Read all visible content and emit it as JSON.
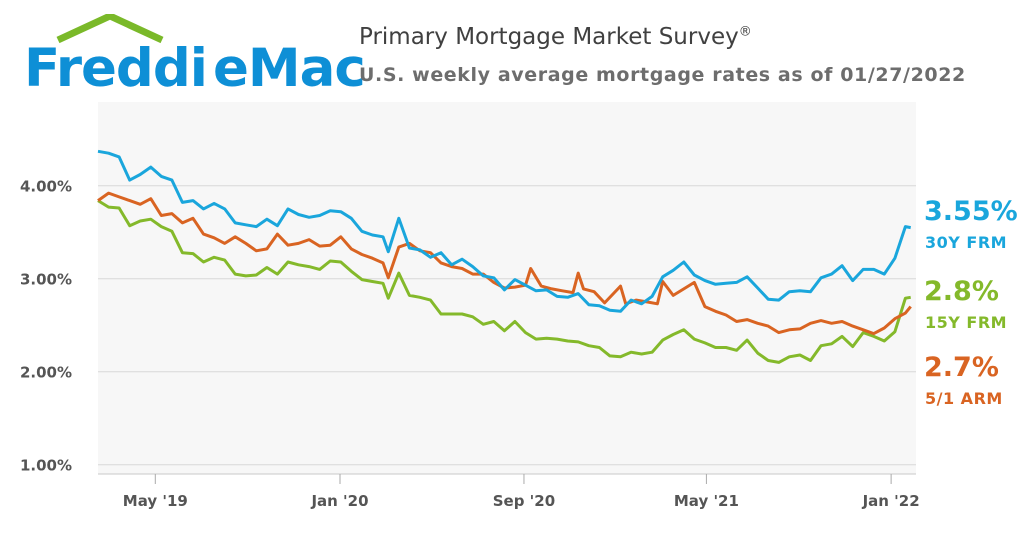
{
  "header": {
    "logo_text": "FreddieMac",
    "title": "Primary Mortgage Market Survey",
    "title_mark": "®",
    "subtitle": "U.S. weekly average mortgage rates as of 01/27/2022"
  },
  "colors": {
    "logo_blue": "#0e8fd6",
    "logo_green": "#7ab929",
    "frm30": "#1aa6dc",
    "frm15": "#84b92b",
    "arm51": "#d96422",
    "plot_bg": "#f7f7f7",
    "grid": "#d8d8d8"
  },
  "rate_labels": [
    {
      "key": "frm30",
      "value": "3.55%",
      "name": "30Y FRM"
    },
    {
      "key": "frm15",
      "value": "2.8%",
      "name": "15Y FRM"
    },
    {
      "key": "arm51",
      "value": "2.7%",
      "name": "5/1 ARM"
    }
  ],
  "chart_data": {
    "type": "line",
    "x_axis_type": "date",
    "xlim": [
      "2019-02-14",
      "2022-02-03"
    ],
    "ylim": [
      0.9,
      4.9
    ],
    "grid": true,
    "y_ticks": [
      {
        "value": 1.0,
        "label": "1.00%"
      },
      {
        "value": 2.0,
        "label": "2.00%"
      },
      {
        "value": 3.0,
        "label": "3.00%"
      },
      {
        "value": 4.0,
        "label": "4.00%"
      }
    ],
    "x_ticks": [
      {
        "value": "2019-05-01",
        "label": "May '19"
      },
      {
        "value": "2020-01-01",
        "label": "Jan '20"
      },
      {
        "value": "2020-09-01",
        "label": "Sep '20"
      },
      {
        "value": "2021-05-01",
        "label": "May '21"
      },
      {
        "value": "2022-01-01",
        "label": "Jan '22"
      }
    ],
    "series": [
      {
        "key": "frm30",
        "name": "30Y FRM",
        "points": [
          [
            "2019-02-14",
            4.37
          ],
          [
            "2019-02-28",
            4.35
          ],
          [
            "2019-03-14",
            4.31
          ],
          [
            "2019-03-28",
            4.06
          ],
          [
            "2019-04-11",
            4.12
          ],
          [
            "2019-04-25",
            4.2
          ],
          [
            "2019-05-09",
            4.1
          ],
          [
            "2019-05-23",
            4.06
          ],
          [
            "2019-06-06",
            3.82
          ],
          [
            "2019-06-20",
            3.84
          ],
          [
            "2019-07-04",
            3.75
          ],
          [
            "2019-07-18",
            3.81
          ],
          [
            "2019-08-01",
            3.75
          ],
          [
            "2019-08-15",
            3.6
          ],
          [
            "2019-08-29",
            3.58
          ],
          [
            "2019-09-12",
            3.56
          ],
          [
            "2019-09-26",
            3.64
          ],
          [
            "2019-10-10",
            3.57
          ],
          [
            "2019-10-24",
            3.75
          ],
          [
            "2019-11-07",
            3.69
          ],
          [
            "2019-11-21",
            3.66
          ],
          [
            "2019-12-05",
            3.68
          ],
          [
            "2019-12-19",
            3.73
          ],
          [
            "2020-01-02",
            3.72
          ],
          [
            "2020-01-16",
            3.65
          ],
          [
            "2020-01-30",
            3.51
          ],
          [
            "2020-02-13",
            3.47
          ],
          [
            "2020-02-27",
            3.45
          ],
          [
            "2020-03-05",
            3.29
          ],
          [
            "2020-03-19",
            3.65
          ],
          [
            "2020-04-02",
            3.33
          ],
          [
            "2020-04-16",
            3.31
          ],
          [
            "2020-04-30",
            3.23
          ],
          [
            "2020-05-14",
            3.28
          ],
          [
            "2020-05-28",
            3.15
          ],
          [
            "2020-06-11",
            3.21
          ],
          [
            "2020-06-25",
            3.13
          ],
          [
            "2020-07-09",
            3.03
          ],
          [
            "2020-07-23",
            3.01
          ],
          [
            "2020-08-06",
            2.88
          ],
          [
            "2020-08-20",
            2.99
          ],
          [
            "2020-09-03",
            2.93
          ],
          [
            "2020-09-17",
            2.87
          ],
          [
            "2020-10-01",
            2.88
          ],
          [
            "2020-10-15",
            2.81
          ],
          [
            "2020-10-29",
            2.8
          ],
          [
            "2020-11-12",
            2.84
          ],
          [
            "2020-11-26",
            2.72
          ],
          [
            "2020-12-10",
            2.71
          ],
          [
            "2020-12-24",
            2.66
          ],
          [
            "2021-01-07",
            2.65
          ],
          [
            "2021-01-21",
            2.77
          ],
          [
            "2021-02-04",
            2.73
          ],
          [
            "2021-02-18",
            2.81
          ],
          [
            "2021-03-04",
            3.02
          ],
          [
            "2021-03-18",
            3.09
          ],
          [
            "2021-04-01",
            3.18
          ],
          [
            "2021-04-15",
            3.04
          ],
          [
            "2021-04-29",
            2.98
          ],
          [
            "2021-05-13",
            2.94
          ],
          [
            "2021-05-27",
            2.95
          ],
          [
            "2021-06-10",
            2.96
          ],
          [
            "2021-06-24",
            3.02
          ],
          [
            "2021-07-08",
            2.9
          ],
          [
            "2021-07-22",
            2.78
          ],
          [
            "2021-08-05",
            2.77
          ],
          [
            "2021-08-19",
            2.86
          ],
          [
            "2021-09-02",
            2.87
          ],
          [
            "2021-09-16",
            2.86
          ],
          [
            "2021-09-30",
            3.01
          ],
          [
            "2021-10-14",
            3.05
          ],
          [
            "2021-10-28",
            3.14
          ],
          [
            "2021-11-11",
            2.98
          ],
          [
            "2021-11-25",
            3.1
          ],
          [
            "2021-12-09",
            3.1
          ],
          [
            "2021-12-23",
            3.05
          ],
          [
            "2022-01-06",
            3.22
          ],
          [
            "2022-01-20",
            3.56
          ],
          [
            "2022-01-27",
            3.55
          ]
        ]
      },
      {
        "key": "frm15",
        "name": "15Y FRM",
        "points": [
          [
            "2019-02-14",
            3.84
          ],
          [
            "2019-02-28",
            3.77
          ],
          [
            "2019-03-14",
            3.76
          ],
          [
            "2019-03-28",
            3.57
          ],
          [
            "2019-04-11",
            3.62
          ],
          [
            "2019-04-25",
            3.64
          ],
          [
            "2019-05-09",
            3.56
          ],
          [
            "2019-05-23",
            3.51
          ],
          [
            "2019-06-06",
            3.28
          ],
          [
            "2019-06-20",
            3.27
          ],
          [
            "2019-07-04",
            3.18
          ],
          [
            "2019-07-18",
            3.23
          ],
          [
            "2019-08-01",
            3.2
          ],
          [
            "2019-08-15",
            3.05
          ],
          [
            "2019-08-29",
            3.03
          ],
          [
            "2019-09-12",
            3.04
          ],
          [
            "2019-09-26",
            3.12
          ],
          [
            "2019-10-10",
            3.05
          ],
          [
            "2019-10-24",
            3.18
          ],
          [
            "2019-11-07",
            3.15
          ],
          [
            "2019-11-21",
            3.13
          ],
          [
            "2019-12-05",
            3.1
          ],
          [
            "2019-12-19",
            3.19
          ],
          [
            "2020-01-02",
            3.18
          ],
          [
            "2020-01-16",
            3.08
          ],
          [
            "2020-01-30",
            2.99
          ],
          [
            "2020-02-13",
            2.97
          ],
          [
            "2020-02-27",
            2.95
          ],
          [
            "2020-03-05",
            2.79
          ],
          [
            "2020-03-19",
            3.06
          ],
          [
            "2020-04-02",
            2.82
          ],
          [
            "2020-04-16",
            2.8
          ],
          [
            "2020-04-30",
            2.77
          ],
          [
            "2020-05-14",
            2.62
          ],
          [
            "2020-05-28",
            2.62
          ],
          [
            "2020-06-11",
            2.62
          ],
          [
            "2020-06-25",
            2.59
          ],
          [
            "2020-07-09",
            2.51
          ],
          [
            "2020-07-23",
            2.54
          ],
          [
            "2020-08-06",
            2.44
          ],
          [
            "2020-08-20",
            2.54
          ],
          [
            "2020-09-03",
            2.42
          ],
          [
            "2020-09-17",
            2.35
          ],
          [
            "2020-10-01",
            2.36
          ],
          [
            "2020-10-15",
            2.35
          ],
          [
            "2020-10-29",
            2.33
          ],
          [
            "2020-11-12",
            2.32
          ],
          [
            "2020-11-26",
            2.28
          ],
          [
            "2020-12-10",
            2.26
          ],
          [
            "2020-12-24",
            2.17
          ],
          [
            "2021-01-07",
            2.16
          ],
          [
            "2021-01-21",
            2.21
          ],
          [
            "2021-02-04",
            2.19
          ],
          [
            "2021-02-18",
            2.21
          ],
          [
            "2021-03-04",
            2.34
          ],
          [
            "2021-03-18",
            2.4
          ],
          [
            "2021-04-01",
            2.45
          ],
          [
            "2021-04-15",
            2.35
          ],
          [
            "2021-04-29",
            2.31
          ],
          [
            "2021-05-13",
            2.26
          ],
          [
            "2021-05-27",
            2.26
          ],
          [
            "2021-06-10",
            2.23
          ],
          [
            "2021-06-24",
            2.34
          ],
          [
            "2021-07-08",
            2.2
          ],
          [
            "2021-07-22",
            2.12
          ],
          [
            "2021-08-05",
            2.1
          ],
          [
            "2021-08-19",
            2.16
          ],
          [
            "2021-09-02",
            2.18
          ],
          [
            "2021-09-16",
            2.12
          ],
          [
            "2021-09-30",
            2.28
          ],
          [
            "2021-10-14",
            2.3
          ],
          [
            "2021-10-28",
            2.38
          ],
          [
            "2021-11-11",
            2.27
          ],
          [
            "2021-11-25",
            2.42
          ],
          [
            "2021-12-09",
            2.38
          ],
          [
            "2021-12-23",
            2.33
          ],
          [
            "2022-01-06",
            2.43
          ],
          [
            "2022-01-20",
            2.79
          ],
          [
            "2022-01-27",
            2.8
          ]
        ]
      },
      {
        "key": "arm51",
        "name": "5/1 ARM",
        "points": [
          [
            "2019-02-14",
            3.84
          ],
          [
            "2019-02-28",
            3.92
          ],
          [
            "2019-03-14",
            3.88
          ],
          [
            "2019-03-28",
            3.84
          ],
          [
            "2019-04-11",
            3.8
          ],
          [
            "2019-04-25",
            3.86
          ],
          [
            "2019-05-09",
            3.68
          ],
          [
            "2019-05-23",
            3.7
          ],
          [
            "2019-06-06",
            3.6
          ],
          [
            "2019-06-20",
            3.65
          ],
          [
            "2019-07-04",
            3.48
          ],
          [
            "2019-07-18",
            3.44
          ],
          [
            "2019-08-01",
            3.38
          ],
          [
            "2019-08-15",
            3.45
          ],
          [
            "2019-08-29",
            3.38
          ],
          [
            "2019-09-12",
            3.3
          ],
          [
            "2019-09-26",
            3.32
          ],
          [
            "2019-10-10",
            3.48
          ],
          [
            "2019-10-24",
            3.36
          ],
          [
            "2019-11-07",
            3.38
          ],
          [
            "2019-11-21",
            3.42
          ],
          [
            "2019-12-05",
            3.35
          ],
          [
            "2019-12-19",
            3.36
          ],
          [
            "2020-01-02",
            3.45
          ],
          [
            "2020-01-16",
            3.32
          ],
          [
            "2020-01-30",
            3.26
          ],
          [
            "2020-02-13",
            3.22
          ],
          [
            "2020-02-27",
            3.17
          ],
          [
            "2020-03-05",
            3.01
          ],
          [
            "2020-03-19",
            3.34
          ],
          [
            "2020-04-02",
            3.38
          ],
          [
            "2020-04-16",
            3.3
          ],
          [
            "2020-04-30",
            3.28
          ],
          [
            "2020-05-14",
            3.17
          ],
          [
            "2020-05-28",
            3.13
          ],
          [
            "2020-06-11",
            3.11
          ],
          [
            "2020-06-25",
            3.05
          ],
          [
            "2020-07-09",
            3.05
          ],
          [
            "2020-07-23",
            2.96
          ],
          [
            "2020-08-06",
            2.9
          ],
          [
            "2020-08-20",
            2.91
          ],
          [
            "2020-09-03",
            2.93
          ],
          [
            "2020-09-10",
            3.11
          ],
          [
            "2020-09-24",
            2.92
          ],
          [
            "2020-10-08",
            2.89
          ],
          [
            "2020-10-22",
            2.87
          ],
          [
            "2020-11-05",
            2.85
          ],
          [
            "2020-11-12",
            3.06
          ],
          [
            "2020-11-19",
            2.89
          ],
          [
            "2020-12-03",
            2.86
          ],
          [
            "2020-12-17",
            2.74
          ],
          [
            "2021-01-07",
            2.92
          ],
          [
            "2021-01-14",
            2.73
          ],
          [
            "2021-01-28",
            2.77
          ],
          [
            "2021-02-11",
            2.75
          ],
          [
            "2021-02-25",
            2.73
          ],
          [
            "2021-03-04",
            2.97
          ],
          [
            "2021-03-18",
            2.82
          ],
          [
            "2021-04-01",
            2.89
          ],
          [
            "2021-04-15",
            2.96
          ],
          [
            "2021-04-29",
            2.7
          ],
          [
            "2021-05-13",
            2.65
          ],
          [
            "2021-05-27",
            2.61
          ],
          [
            "2021-06-10",
            2.54
          ],
          [
            "2021-06-24",
            2.56
          ],
          [
            "2021-07-08",
            2.52
          ],
          [
            "2021-07-22",
            2.49
          ],
          [
            "2021-08-05",
            2.42
          ],
          [
            "2021-08-19",
            2.45
          ],
          [
            "2021-09-02",
            2.46
          ],
          [
            "2021-09-16",
            2.52
          ],
          [
            "2021-09-30",
            2.55
          ],
          [
            "2021-10-14",
            2.52
          ],
          [
            "2021-10-28",
            2.54
          ],
          [
            "2021-11-11",
            2.49
          ],
          [
            "2021-11-25",
            2.45
          ],
          [
            "2021-12-09",
            2.41
          ],
          [
            "2021-12-23",
            2.47
          ],
          [
            "2022-01-06",
            2.57
          ],
          [
            "2022-01-20",
            2.63
          ],
          [
            "2022-01-27",
            2.7
          ]
        ]
      }
    ]
  }
}
